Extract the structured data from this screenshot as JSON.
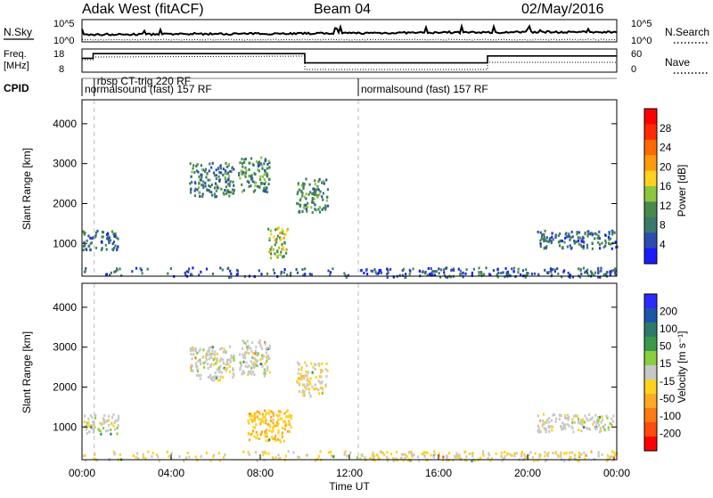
{
  "header": {
    "station": "Adak West (fitACF)",
    "beam": "Beam 04",
    "date": "02/May/2016"
  },
  "labels": {
    "nsky": "N.Sky",
    "nsearch": "N.Search",
    "freq_line1": "Freq.",
    "freq_line2": "[MHz]",
    "nave": "Nave",
    "cpid": "CPID",
    "tick_1e5_left": "10^5",
    "tick_1e0_left": "10^0",
    "tick_1e5_right": "10^5",
    "tick_1e0_right": "10^0",
    "freq_ticks": [
      "18",
      "8"
    ],
    "nave_ticks": [
      "60",
      "0"
    ]
  },
  "cpid_segments": [
    {
      "start_h": 0.0,
      "label": "normalsound (fast) 157 RF"
    },
    {
      "start_h": 0.55,
      "label": "rbsp CT-trig 220 RF"
    },
    {
      "start_h": 12.4,
      "label": "normalsound (fast) 157 RF"
    }
  ],
  "colors": {
    "power_scale": [
      "#1a1aff",
      "#2d4cb0",
      "#3a7a6a",
      "#4a8a4a",
      "#8ec63f",
      "#ffd21e",
      "#ff9b0a",
      "#ff6a00",
      "#ff2a00",
      "#ff0000"
    ],
    "velocity_scale": [
      "#2b2bff",
      "#1a55aa",
      "#2e7a6a",
      "#3b9a4a",
      "#89cf3f",
      "#c8c8c8",
      "#ffd21e",
      "#ffaa22",
      "#ff7a10",
      "#ff4a10",
      "#ff0000"
    ]
  },
  "chart_data": [
    {
      "type": "heatmap",
      "title": "",
      "ylabel": "Slant Range [km]",
      "xlabel": "",
      "ylim": [
        180,
        4600
      ],
      "xlim": [
        0,
        24
      ],
      "yticks": [
        "1000",
        "2000",
        "3000",
        "4000"
      ],
      "xticks": [],
      "colorbar": {
        "label": "Power [dB]",
        "ticks": [
          "4",
          "8",
          "12",
          "16",
          "20",
          "24",
          "28"
        ],
        "range": [
          0,
          30
        ]
      },
      "regions": [
        {
          "t": [
            0.0,
            1.6
          ],
          "r": [
            850,
            1350
          ],
          "mean": 7
        },
        {
          "t": [
            4.8,
            6.8
          ],
          "r": [
            2200,
            3050
          ],
          "mean": 8
        },
        {
          "t": [
            7.0,
            8.4
          ],
          "r": [
            2300,
            3200
          ],
          "mean": 9
        },
        {
          "t": [
            8.3,
            9.2
          ],
          "r": [
            650,
            1450
          ],
          "mean": 14
        },
        {
          "t": [
            9.6,
            11.0
          ],
          "r": [
            1800,
            2650
          ],
          "mean": 9
        },
        {
          "t": [
            20.4,
            24.0
          ],
          "r": [
            900,
            1350
          ],
          "mean": 7
        },
        {
          "t": [
            0.0,
            24.0
          ],
          "r": [
            180,
            420
          ],
          "mean": 6
        }
      ]
    },
    {
      "type": "heatmap",
      "title": "",
      "ylabel": "Slant Range [km]",
      "xlabel": "Time UT",
      "ylim": [
        180,
        4600
      ],
      "xlim": [
        0,
        24
      ],
      "yticks": [
        "1000",
        "2000",
        "3000",
        "4000"
      ],
      "xticks": [
        "00:00",
        "04:00",
        "08:00",
        "12:00",
        "16:00",
        "20:00",
        "00:00"
      ],
      "colorbar": {
        "label": "Velocity [m s⁻¹]",
        "ticks": [
          "200",
          "100",
          "50",
          "15",
          "-15",
          "-50",
          "-100",
          "-200"
        ],
        "range": [
          -250,
          250
        ]
      },
      "regions": [
        {
          "t": [
            0.0,
            1.6
          ],
          "r": [
            850,
            1350
          ],
          "mean": 0
        },
        {
          "t": [
            4.8,
            6.8
          ],
          "r": [
            2200,
            3050
          ],
          "mean": 0
        },
        {
          "t": [
            7.0,
            8.4
          ],
          "r": [
            2300,
            3200
          ],
          "mean": 0
        },
        {
          "t": [
            7.4,
            9.4
          ],
          "r": [
            650,
            1450
          ],
          "mean": -60
        },
        {
          "t": [
            9.6,
            11.0
          ],
          "r": [
            1800,
            2650
          ],
          "mean": -20
        },
        {
          "t": [
            20.4,
            24.0
          ],
          "r": [
            900,
            1350
          ],
          "mean": 0
        },
        {
          "t": [
            0.0,
            24.0
          ],
          "r": [
            180,
            420
          ],
          "mean": -20
        }
      ]
    }
  ]
}
